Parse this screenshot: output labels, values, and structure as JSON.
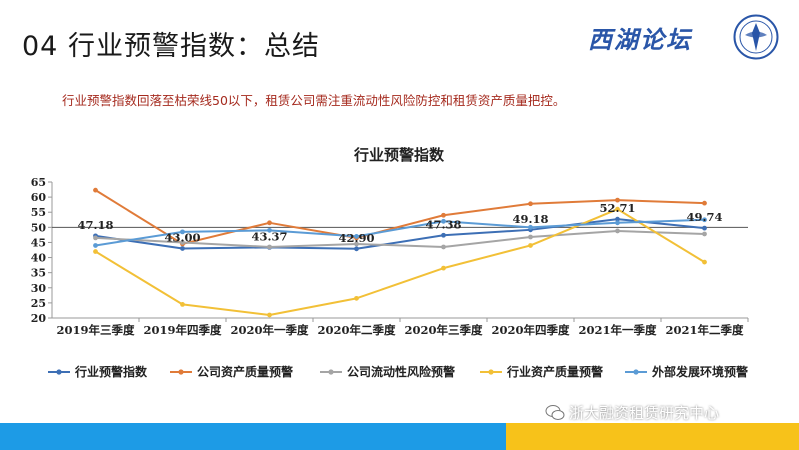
{
  "slide": {
    "title": "04 行业预警指数：总结",
    "summary": "行业预警指数回落至枯荣线50以下，租赁公司需注重流动性风险防控和租赁资产质量把控。",
    "logo_text": "西湖论坛",
    "watermark": "浙大融资租赁研究中心",
    "colors": {
      "summary_text": "#a52a1e",
      "footer_blue": "#1d9be6",
      "footer_yellow": "#f7c21a",
      "logo": "#2a56a8"
    }
  },
  "chart_data": {
    "type": "line",
    "title": "行业预警指数",
    "categories": [
      "2019年三季度",
      "2019年四季度",
      "2020年一季度",
      "2020年二季度",
      "2020年三季度",
      "2020年四季度",
      "2021年一季度",
      "2021年二季度"
    ],
    "yticks": [
      "65",
      "60",
      "55",
      "50",
      "45",
      "40",
      "35",
      "30",
      "25",
      "20"
    ],
    "ylim": [
      20,
      65
    ],
    "grid": false,
    "legend_position": "bottom",
    "series": [
      {
        "name": "行业预警指数",
        "color": "#3d6fb5",
        "values": [
          47.18,
          43.0,
          43.37,
          42.9,
          47.38,
          49.18,
          52.71,
          49.74
        ],
        "labels": [
          "47.18",
          "43.00",
          "43.37",
          "42.90",
          "47.38",
          "49.18",
          "52.71",
          "49.74"
        ]
      },
      {
        "name": "公司资产质量预警",
        "color": "#e07b39",
        "values": [
          62.3,
          44.5,
          51.5,
          46.5,
          54.0,
          57.8,
          59.0,
          58.0
        ]
      },
      {
        "name": "公司流动性风险预警",
        "color": "#a5a5a5",
        "values": [
          46.5,
          45.0,
          43.5,
          44.5,
          43.5,
          46.8,
          48.8,
          47.8
        ]
      },
      {
        "name": "行业资产质量预警",
        "color": "#f2c037",
        "values": [
          42.0,
          24.5,
          21.0,
          26.5,
          36.5,
          44.0,
          56.0,
          38.5
        ]
      },
      {
        "name": "外部发展环境预警",
        "color": "#5b9bd5",
        "values": [
          44.0,
          48.5,
          49.0,
          47.0,
          52.0,
          50.0,
          51.5,
          52.5
        ]
      }
    ]
  }
}
